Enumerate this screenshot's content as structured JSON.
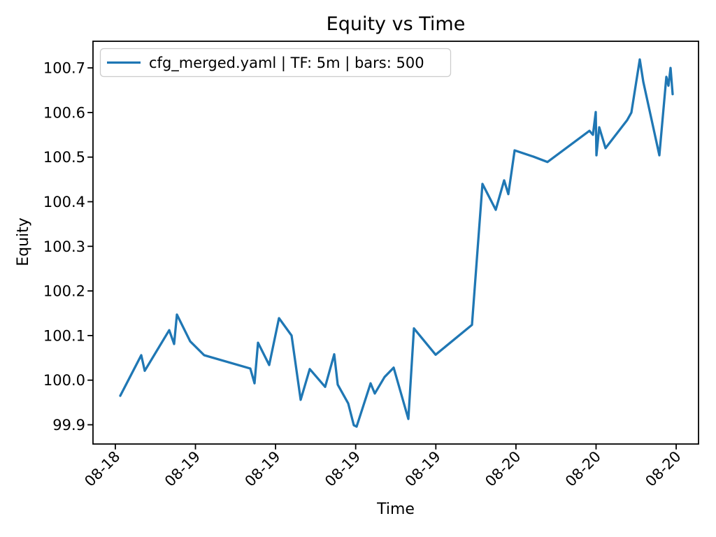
{
  "figure": {
    "background_color": "#ffffff",
    "axis_color": "#000000",
    "legend_border_color": "#cccccc",
    "legend_background": "rgba(255,255,255,0.8)"
  },
  "chart_data": {
    "type": "line",
    "title": "Equity vs Time",
    "xlabel": "Time",
    "ylabel": "Equity",
    "ylim": [
      99.857,
      100.76
    ],
    "grid": false,
    "legend_position": "upper left",
    "y_ticks": [
      99.9,
      100.0,
      100.1,
      100.2,
      100.3,
      100.4,
      100.5,
      100.6,
      100.7
    ],
    "x_ticks": [
      {
        "pos": 0.0369,
        "label": "08-18"
      },
      {
        "pos": 0.1692,
        "label": "08-19"
      },
      {
        "pos": 0.3015,
        "label": "08-19"
      },
      {
        "pos": 0.4338,
        "label": "08-19"
      },
      {
        "pos": 0.5662,
        "label": "08-19"
      },
      {
        "pos": 0.6985,
        "label": "08-20"
      },
      {
        "pos": 0.8308,
        "label": "08-20"
      },
      {
        "pos": 0.9631,
        "label": "08-20"
      }
    ],
    "series": [
      {
        "name": "cfg_merged.yaml | TF: 5m | bars: 500",
        "color": "#1f77b4",
        "points": [
          [
            0.045,
            99.965
          ],
          [
            0.0797,
            100.056
          ],
          [
            0.0854,
            100.021
          ],
          [
            0.1259,
            100.112
          ],
          [
            0.1339,
            100.081
          ],
          [
            0.1386,
            100.147
          ],
          [
            0.1605,
            100.087
          ],
          [
            0.1836,
            100.056
          ],
          [
            0.2598,
            100.026
          ],
          [
            0.2667,
            99.993
          ],
          [
            0.2725,
            100.084
          ],
          [
            0.291,
            100.034
          ],
          [
            0.3072,
            100.139
          ],
          [
            0.3279,
            100.1
          ],
          [
            0.343,
            99.956
          ],
          [
            0.358,
            100.025
          ],
          [
            0.3834,
            99.985
          ],
          [
            0.3984,
            100.058
          ],
          [
            0.4042,
            99.99
          ],
          [
            0.4215,
            99.948
          ],
          [
            0.4307,
            99.899
          ],
          [
            0.4353,
            99.896
          ],
          [
            0.4584,
            99.993
          ],
          [
            0.4654,
            99.97
          ],
          [
            0.4815,
            100.007
          ],
          [
            0.4965,
            100.028
          ],
          [
            0.5208,
            99.913
          ],
          [
            0.53,
            100.116
          ],
          [
            0.5658,
            100.057
          ],
          [
            0.6259,
            100.124
          ],
          [
            0.6432,
            100.44
          ],
          [
            0.6651,
            100.382
          ],
          [
            0.679,
            100.448
          ],
          [
            0.6859,
            100.417
          ],
          [
            0.6963,
            100.515
          ],
          [
            0.7275,
            100.501
          ],
          [
            0.7506,
            100.489
          ],
          [
            0.8199,
            100.559
          ],
          [
            0.8256,
            100.55
          ],
          [
            0.8303,
            100.601
          ],
          [
            0.8314,
            100.504
          ],
          [
            0.836,
            100.567
          ],
          [
            0.8464,
            100.52
          ],
          [
            0.8822,
            100.583
          ],
          [
            0.8891,
            100.6
          ],
          [
            0.903,
            100.719
          ],
          [
            0.9088,
            100.669
          ],
          [
            0.9353,
            100.504
          ],
          [
            0.9469,
            100.68
          ],
          [
            0.9503,
            100.66
          ],
          [
            0.9538,
            100.7
          ],
          [
            0.9573,
            100.641
          ]
        ]
      }
    ]
  }
}
